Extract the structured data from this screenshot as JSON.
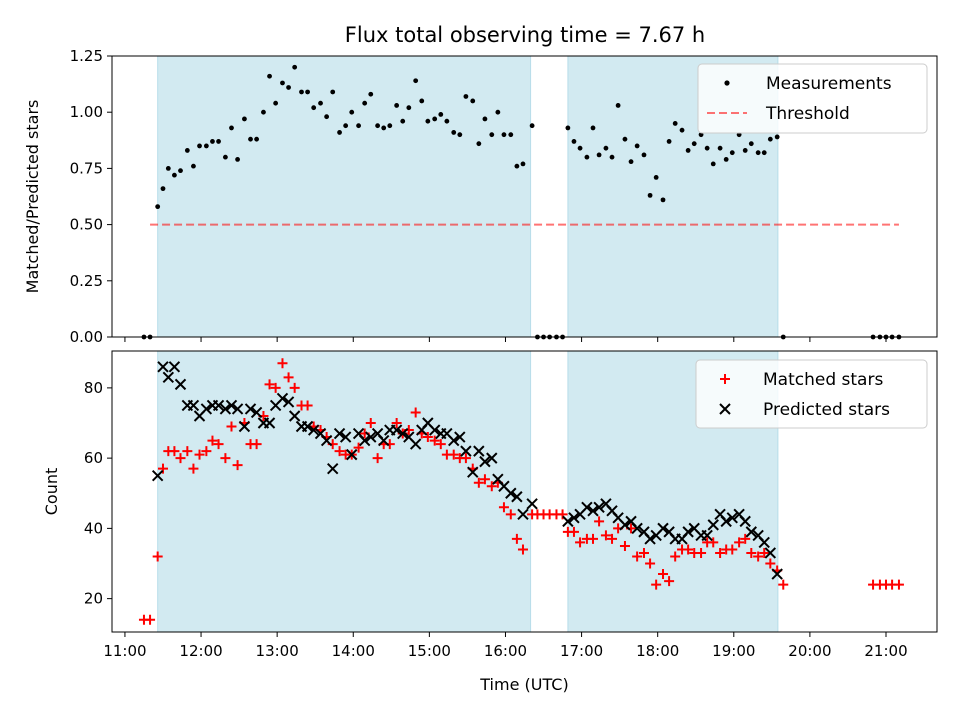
{
  "title": "Flux total observing time = 7.67 h",
  "colors": {
    "shade": "#add8e6",
    "threshold": "#ff0000",
    "matched": "#ff0000",
    "predicted": "#000000",
    "measure": "#000000"
  },
  "chart_data": [
    {
      "type": "scatter",
      "title": "Flux total observing time = 7.67 h",
      "xlabel": "",
      "ylabel": "Matched/Predicted stars",
      "xlim": [
        10.83,
        21.67
      ],
      "ylim": [
        0.0,
        1.25
      ],
      "yticks": [
        "0.00",
        "0.25",
        "0.50",
        "0.75",
        "1.00",
        "1.25"
      ],
      "legend_position": "upper right",
      "shaded_intervals": [
        [
          11.43,
          16.33
        ],
        [
          16.82,
          19.58
        ]
      ],
      "threshold": {
        "name": "Threshold",
        "x": [
          11.33,
          21.17
        ],
        "y": 0.5,
        "style": "dashed"
      },
      "series": [
        {
          "name": "Measurements",
          "marker": "dot",
          "x": [
            11.25,
            11.33,
            11.43,
            11.5,
            11.57,
            11.65,
            11.73,
            11.82,
            11.9,
            11.98,
            12.07,
            12.15,
            12.23,
            12.32,
            12.4,
            12.48,
            12.57,
            12.65,
            12.73,
            12.82,
            12.9,
            12.98,
            13.07,
            13.15,
            13.23,
            13.32,
            13.4,
            13.48,
            13.57,
            13.65,
            13.73,
            13.82,
            13.9,
            13.98,
            14.07,
            14.15,
            14.23,
            14.32,
            14.4,
            14.48,
            14.57,
            14.65,
            14.73,
            14.82,
            14.9,
            14.98,
            15.07,
            15.15,
            15.23,
            15.32,
            15.4,
            15.48,
            15.57,
            15.65,
            15.73,
            15.82,
            15.9,
            15.98,
            16.07,
            16.15,
            16.23,
            16.35,
            16.42,
            16.5,
            16.58,
            16.67,
            16.75,
            16.82,
            16.9,
            16.98,
            17.07,
            17.15,
            17.23,
            17.32,
            17.4,
            17.48,
            17.57,
            17.65,
            17.73,
            17.82,
            17.9,
            17.98,
            18.07,
            18.15,
            18.23,
            18.32,
            18.4,
            18.48,
            18.57,
            18.65,
            18.73,
            18.82,
            18.9,
            18.98,
            19.07,
            19.15,
            19.23,
            19.32,
            19.4,
            19.48,
            19.57,
            19.65,
            20.83,
            20.92,
            21.0,
            21.08,
            21.17
          ],
          "y": [
            0.0,
            0.0,
            0.58,
            0.66,
            0.75,
            0.72,
            0.74,
            0.83,
            0.76,
            0.85,
            0.85,
            0.87,
            0.87,
            0.8,
            0.93,
            0.79,
            0.97,
            0.88,
            0.88,
            1.0,
            1.16,
            1.04,
            1.13,
            1.11,
            1.2,
            1.09,
            1.09,
            1.02,
            1.04,
            0.98,
            1.09,
            0.91,
            0.94,
            1.0,
            0.94,
            1.04,
            1.08,
            0.94,
            0.93,
            0.94,
            1.03,
            0.96,
            1.02,
            1.14,
            1.05,
            0.96,
            0.97,
            0.99,
            0.96,
            0.91,
            0.9,
            1.07,
            1.05,
            0.86,
            0.97,
            0.9,
            1.0,
            0.9,
            0.9,
            0.76,
            0.77,
            0.94,
            0.0,
            0.0,
            0.0,
            0.0,
            0.0,
            0.93,
            0.87,
            0.84,
            0.8,
            0.93,
            0.81,
            0.84,
            0.8,
            1.03,
            0.88,
            0.78,
            0.85,
            0.81,
            0.63,
            0.71,
            0.61,
            0.87,
            0.95,
            0.92,
            0.83,
            0.86,
            0.9,
            0.84,
            0.77,
            0.84,
            0.79,
            0.82,
            0.9,
            0.83,
            0.86,
            0.82,
            0.82,
            0.88,
            0.89,
            0.0,
            0.0,
            0.0,
            0.0,
            0.0,
            0.0
          ]
        }
      ]
    },
    {
      "type": "scatter",
      "title": "",
      "xlabel": "Time (UTC)",
      "ylabel": "Count",
      "xlim": [
        10.83,
        21.67
      ],
      "ylim": [
        10.5,
        90.5
      ],
      "yticks": [
        "20",
        "40",
        "60",
        "80"
      ],
      "xticks": [
        "11:00",
        "12:00",
        "13:00",
        "14:00",
        "15:00",
        "16:00",
        "17:00",
        "18:00",
        "19:00",
        "20:00",
        "21:00"
      ],
      "legend_position": "upper right",
      "shaded_intervals": [
        [
          11.43,
          16.33
        ],
        [
          16.82,
          19.58
        ]
      ],
      "series": [
        {
          "name": "Matched stars",
          "marker": "plus",
          "x": [
            11.25,
            11.33,
            11.43,
            11.5,
            11.57,
            11.65,
            11.73,
            11.82,
            11.9,
            11.98,
            12.07,
            12.15,
            12.23,
            12.32,
            12.4,
            12.48,
            12.57,
            12.65,
            12.73,
            12.82,
            12.9,
            12.98,
            13.07,
            13.15,
            13.23,
            13.32,
            13.4,
            13.48,
            13.57,
            13.65,
            13.73,
            13.82,
            13.9,
            13.98,
            14.07,
            14.15,
            14.23,
            14.32,
            14.4,
            14.48,
            14.57,
            14.65,
            14.73,
            14.82,
            14.9,
            14.98,
            15.07,
            15.15,
            15.23,
            15.32,
            15.4,
            15.48,
            15.57,
            15.65,
            15.73,
            15.82,
            15.9,
            15.98,
            16.07,
            16.15,
            16.23,
            16.35,
            16.42,
            16.5,
            16.58,
            16.67,
            16.75,
            16.82,
            16.9,
            16.98,
            17.07,
            17.15,
            17.23,
            17.32,
            17.4,
            17.48,
            17.57,
            17.65,
            17.73,
            17.82,
            17.9,
            17.98,
            18.07,
            18.15,
            18.23,
            18.32,
            18.4,
            18.48,
            18.57,
            18.65,
            18.73,
            18.82,
            18.9,
            18.98,
            19.07,
            19.15,
            19.23,
            19.32,
            19.4,
            19.48,
            19.57,
            19.65,
            20.83,
            20.92,
            21.0,
            21.08,
            21.17
          ],
          "y": [
            14,
            14,
            32,
            57,
            62,
            62,
            60,
            62,
            57,
            61,
            62,
            65,
            64,
            60,
            69,
            58,
            70,
            64,
            64,
            72,
            81,
            80,
            87,
            83,
            80,
            75,
            75,
            69,
            68,
            66,
            64,
            62,
            61,
            61,
            63,
            67,
            70,
            60,
            64,
            64,
            70,
            67,
            68,
            73,
            67,
            66,
            65,
            64,
            61,
            61,
            60,
            60,
            57,
            53,
            54,
            52,
            53,
            46,
            44,
            37,
            34,
            44,
            44,
            44,
            44,
            44,
            44,
            39,
            39,
            36,
            37,
            37,
            42,
            38,
            37,
            40,
            35,
            40,
            32,
            33,
            30,
            24,
            27,
            25,
            32,
            34,
            34,
            33,
            33,
            36,
            36,
            33,
            34,
            34,
            36,
            37,
            33,
            32,
            33,
            30,
            28,
            24,
            24,
            24,
            24,
            24,
            24
          ]
        },
        {
          "name": "Predicted stars",
          "marker": "x",
          "x": [
            11.43,
            11.5,
            11.57,
            11.65,
            11.73,
            11.82,
            11.9,
            11.98,
            12.07,
            12.15,
            12.23,
            12.32,
            12.4,
            12.48,
            12.57,
            12.65,
            12.73,
            12.82,
            12.9,
            12.98,
            13.07,
            13.15,
            13.23,
            13.32,
            13.4,
            13.48,
            13.57,
            13.65,
            13.73,
            13.82,
            13.9,
            13.98,
            14.07,
            14.15,
            14.23,
            14.32,
            14.4,
            14.48,
            14.57,
            14.65,
            14.73,
            14.82,
            14.9,
            14.98,
            15.07,
            15.15,
            15.23,
            15.32,
            15.4,
            15.48,
            15.57,
            15.65,
            15.73,
            15.82,
            15.9,
            15.98,
            16.07,
            16.15,
            16.23,
            16.35,
            16.82,
            16.9,
            16.98,
            17.07,
            17.15,
            17.23,
            17.32,
            17.4,
            17.48,
            17.57,
            17.65,
            17.73,
            17.82,
            17.9,
            17.98,
            18.07,
            18.15,
            18.23,
            18.32,
            18.4,
            18.48,
            18.57,
            18.65,
            18.73,
            18.82,
            18.9,
            18.98,
            19.07,
            19.15,
            19.23,
            19.32,
            19.4,
            19.48,
            19.57
          ],
          "y": [
            55,
            86,
            83,
            86,
            81,
            75,
            75,
            72,
            74,
            75,
            75,
            74,
            75,
            74,
            69,
            74,
            73,
            70,
            70,
            75,
            77,
            76,
            72,
            69,
            69,
            68,
            67,
            65,
            57,
            67,
            66,
            61,
            67,
            65,
            66,
            67,
            65,
            68,
            68,
            67,
            66,
            64,
            68,
            70,
            68,
            67,
            67,
            65,
            66,
            62,
            56,
            62,
            59,
            60,
            54,
            52,
            50,
            49,
            44,
            47,
            42,
            43,
            44,
            46,
            45,
            46,
            47,
            45,
            43,
            41,
            42,
            40,
            39,
            37,
            38,
            40,
            39,
            37,
            37,
            39,
            40,
            38,
            38,
            41,
            44,
            42,
            43,
            44,
            42,
            39,
            38,
            36,
            33,
            27
          ]
        }
      ]
    }
  ]
}
